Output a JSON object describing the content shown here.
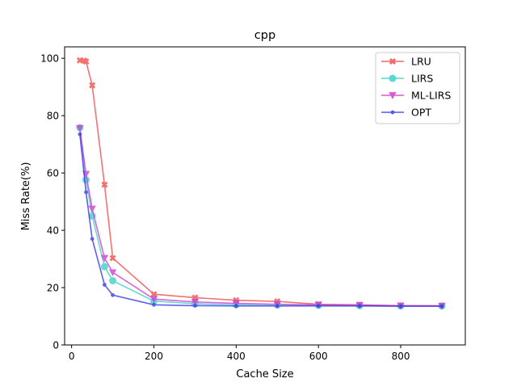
{
  "chart_data": {
    "type": "line",
    "title": "cpp",
    "xlabel": "Cache Size",
    "ylabel": "Miss Rate(%)",
    "xlim": [
      -17,
      957
    ],
    "ylim": [
      0,
      104
    ],
    "xticks": [
      0,
      200,
      400,
      600,
      800
    ],
    "yticks": [
      0,
      20,
      40,
      60,
      80,
      100
    ],
    "grid": false,
    "legend_position": "top-right",
    "series": [
      {
        "name": "LRU",
        "color": "#f05050",
        "marker": "X",
        "x": [
          20,
          30,
          35,
          50,
          80,
          100,
          200,
          300,
          400,
          500,
          600,
          700,
          800,
          900
        ],
        "y": [
          99.3,
          99.2,
          98.9,
          90.6,
          55.9,
          30.3,
          17.7,
          16.5,
          15.6,
          15.2,
          14.2,
          14.0,
          13.7,
          13.7
        ]
      },
      {
        "name": "LIRS",
        "color": "#40d0c8",
        "marker": "o",
        "x": [
          20,
          35,
          50,
          80,
          100,
          200,
          300,
          400,
          500,
          600,
          700,
          800,
          900
        ],
        "y": [
          75.8,
          57.6,
          45.0,
          27.3,
          22.4,
          15.3,
          14.4,
          14.0,
          13.9,
          13.8,
          13.7,
          13.6,
          13.6
        ]
      },
      {
        "name": "ML-LIRS",
        "color": "#d040d0",
        "marker": "v",
        "x": [
          20,
          35,
          50,
          80,
          100,
          200,
          300,
          400,
          500,
          600,
          700,
          800,
          900
        ],
        "y": [
          75.6,
          59.6,
          47.5,
          30.3,
          25.3,
          16.0,
          15.0,
          14.5,
          14.2,
          14.0,
          13.9,
          13.7,
          13.6
        ]
      },
      {
        "name": "OPT",
        "color": "#3838e8",
        "marker": ".",
        "x": [
          20,
          35,
          50,
          80,
          100,
          200,
          300,
          400,
          500,
          600,
          700,
          800,
          900
        ],
        "y": [
          73.5,
          53.3,
          37.0,
          21.0,
          17.4,
          14.0,
          13.7,
          13.6,
          13.6,
          13.6,
          13.6,
          13.5,
          13.5
        ]
      }
    ]
  }
}
